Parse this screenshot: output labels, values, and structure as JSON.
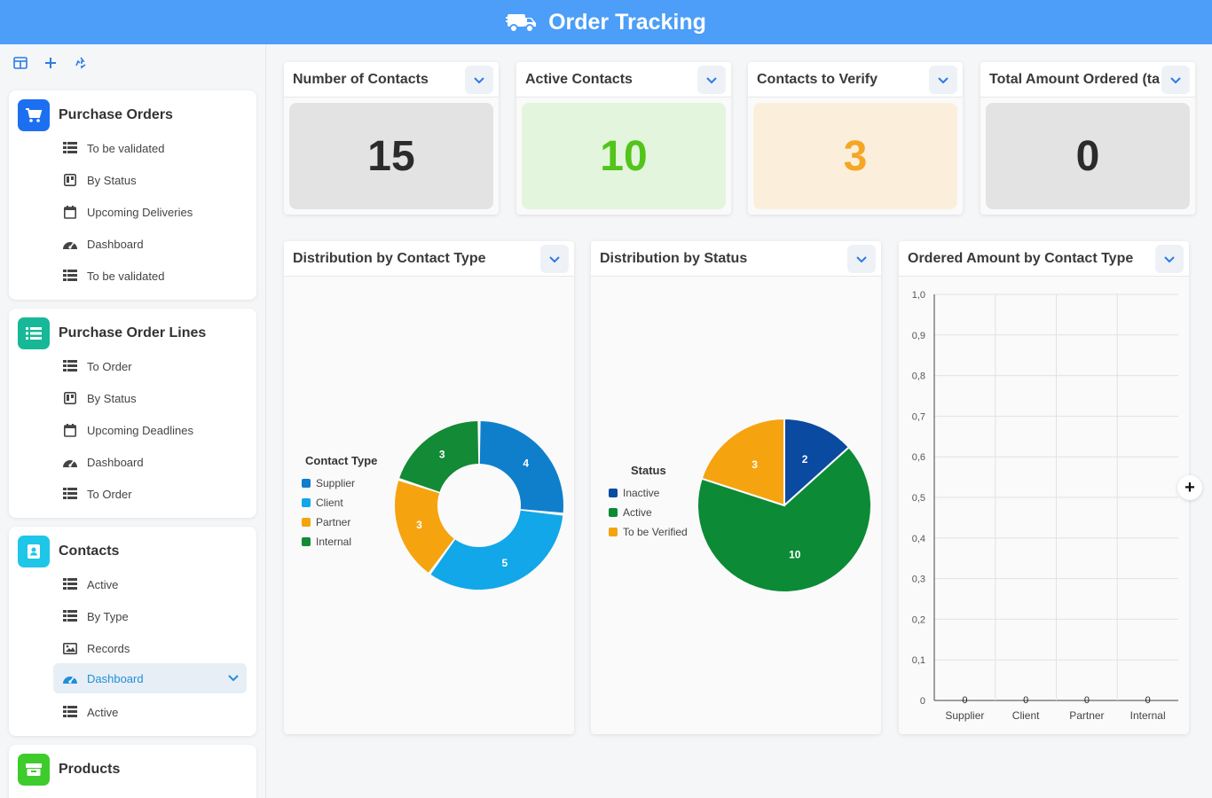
{
  "app": {
    "title": "Order Tracking"
  },
  "sidebar": {
    "tools": [
      {
        "icon": "layout-icon"
      },
      {
        "icon": "plus-icon"
      },
      {
        "icon": "recycle-icon"
      }
    ],
    "groups": [
      {
        "title": "Purchase Orders",
        "icon": "cart-icon",
        "color": "#1d6ff2",
        "items": [
          {
            "label": "To be validated",
            "icon": "list-icon"
          },
          {
            "label": "By Status",
            "icon": "kanban-icon"
          },
          {
            "label": "Upcoming Deliveries",
            "icon": "calendar-icon"
          },
          {
            "label": "Dashboard",
            "icon": "dashboard-icon"
          },
          {
            "label": "To be validated",
            "icon": "list-icon"
          }
        ]
      },
      {
        "title": "Purchase Order Lines",
        "icon": "list-lines-icon",
        "color": "#17b897",
        "items": [
          {
            "label": "To Order",
            "icon": "list-icon"
          },
          {
            "label": "By Status",
            "icon": "kanban-icon"
          },
          {
            "label": "Upcoming Deadlines",
            "icon": "calendar-icon"
          },
          {
            "label": "Dashboard",
            "icon": "dashboard-icon"
          },
          {
            "label": "To Order",
            "icon": "list-icon"
          }
        ]
      },
      {
        "title": "Contacts",
        "icon": "contact-book-icon",
        "color": "#1ec6e8",
        "items": [
          {
            "label": "Active",
            "icon": "list-icon"
          },
          {
            "label": "By Type",
            "icon": "list-icon"
          },
          {
            "label": "Records",
            "icon": "image-icon"
          },
          {
            "label": "Dashboard",
            "icon": "dashboard-icon",
            "active": true
          },
          {
            "label": "Active",
            "icon": "list-icon"
          }
        ]
      },
      {
        "title": "Products",
        "icon": "box-icon",
        "color": "#3ecb2c",
        "items": []
      }
    ]
  },
  "kpis": [
    {
      "title": "Number of Contacts",
      "value": "15",
      "bg": "#e3e3e3",
      "fg": "#2b2b2b"
    },
    {
      "title": "Active Contacts",
      "value": "10",
      "bg": "#e3f5dc",
      "fg": "#52c41a"
    },
    {
      "title": "Contacts to Verify",
      "value": "3",
      "bg": "#fbefdc",
      "fg": "#f5a623"
    },
    {
      "title": "Total Amount Ordered (ta",
      "value": "0",
      "bg": "#e3e3e3",
      "fg": "#2b2b2b"
    }
  ],
  "charts": {
    "contact_type": {
      "title": "Distribution by Contact Type",
      "legend_title": "Contact Type"
    },
    "status": {
      "title": "Distribution by Status",
      "legend_title": "Status"
    },
    "ordered_amount": {
      "title": "Ordered Amount by Contact Type"
    }
  },
  "chart_data": [
    {
      "type": "pie",
      "title": "Distribution by Contact Type",
      "variant": "donut",
      "legend_title": "Contact Type",
      "categories": [
        "Supplier",
        "Client",
        "Partner",
        "Internal"
      ],
      "values": [
        4,
        5,
        3,
        3
      ],
      "colors": [
        "#0f7fcc",
        "#11a7e8",
        "#f5a40f",
        "#138a36"
      ],
      "legend": "left"
    },
    {
      "type": "pie",
      "title": "Distribution by Status",
      "legend_title": "Status",
      "categories": [
        "Inactive",
        "Active",
        "To be Verified"
      ],
      "values": [
        2,
        10,
        3
      ],
      "colors": [
        "#0a4aa0",
        "#0c8a36",
        "#f5a40f"
      ],
      "legend": "left"
    },
    {
      "type": "bar",
      "title": "Ordered Amount by Contact Type",
      "categories": [
        "Supplier",
        "Client",
        "Partner",
        "Internal"
      ],
      "values": [
        0,
        0,
        0,
        0
      ],
      "ylim": [
        0,
        1.0
      ],
      "yticks": [
        "0",
        "0,1",
        "0,2",
        "0,3",
        "0,4",
        "0,5",
        "0,6",
        "0,7",
        "0,8",
        "0,9",
        "1,0"
      ],
      "grid": true
    }
  ]
}
